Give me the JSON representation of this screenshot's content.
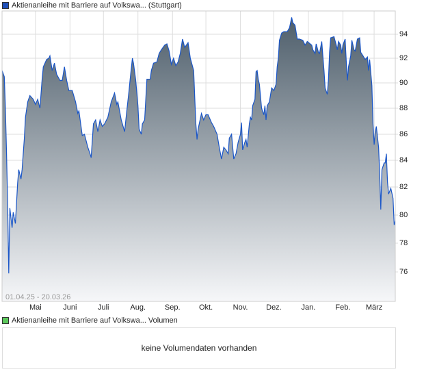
{
  "legend_main": {
    "label": "Aktienanleihe mit Barriere auf Volkswa... (Stuttgart)",
    "color": "#1f4fb8"
  },
  "legend_volume": {
    "label": "Aktienanleihe mit Barriere auf Volkswa... Volumen",
    "color": "#5cc85c"
  },
  "volume_message": "keine Volumendaten vorhanden",
  "chart_data": {
    "type": "area",
    "date_range": "01.04.25 - 20.03.26",
    "x_unit": "days since 01.04.25",
    "xlim": [
      0,
      353
    ],
    "ylim": [
      74,
      95.8
    ],
    "y_ticks": [
      94,
      92,
      90,
      88,
      86,
      84,
      82,
      80,
      78,
      76
    ],
    "x_ticks": [
      {
        "label": "Mai",
        "day": 30
      },
      {
        "label": "Juni",
        "day": 61
      },
      {
        "label": "Juli",
        "day": 91
      },
      {
        "label": "Aug.",
        "day": 122
      },
      {
        "label": "Sep.",
        "day": 153
      },
      {
        "label": "Okt.",
        "day": 183
      },
      {
        "label": "Nov.",
        "day": 214
      },
      {
        "label": "Dez.",
        "day": 244
      },
      {
        "label": "Jan.",
        "day": 275
      },
      {
        "label": "Feb.",
        "day": 306
      },
      {
        "label": "März",
        "day": 334
      }
    ],
    "grid": true,
    "line_color": "#1a56c8",
    "fill_top": "#4e5e6b",
    "fill_bottom": "#f6f7f9",
    "points": [
      [
        0,
        91
      ],
      [
        2,
        90.5
      ],
      [
        3,
        88
      ],
      [
        4,
        84.7
      ],
      [
        5,
        81
      ],
      [
        6,
        75.9
      ],
      [
        7,
        80.5
      ],
      [
        9,
        79.1
      ],
      [
        10,
        80.2
      ],
      [
        12,
        79.4
      ],
      [
        14,
        82.3
      ],
      [
        15,
        83.3
      ],
      [
        17,
        82.6
      ],
      [
        18,
        83.3
      ],
      [
        20,
        85.7
      ],
      [
        21,
        87.3
      ],
      [
        23,
        88.5
      ],
      [
        25,
        89
      ],
      [
        28,
        88.7
      ],
      [
        30,
        88.3
      ],
      [
        32,
        88.7
      ],
      [
        34,
        88
      ],
      [
        36,
        90.3
      ],
      [
        37,
        91.3
      ],
      [
        40,
        91.9
      ],
      [
        42,
        92
      ],
      [
        43,
        92.2
      ],
      [
        45,
        91
      ],
      [
        47,
        91.6
      ],
      [
        49,
        90.7
      ],
      [
        52,
        90.2
      ],
      [
        54,
        90.2
      ],
      [
        56,
        91.3
      ],
      [
        58,
        90.2
      ],
      [
        60,
        89.4
      ],
      [
        63,
        89.4
      ],
      [
        66,
        88.5
      ],
      [
        68,
        87.6
      ],
      [
        69,
        87.8
      ],
      [
        72,
        85.9
      ],
      [
        74,
        86
      ],
      [
        77,
        85
      ],
      [
        79,
        84.5
      ],
      [
        80,
        84.2
      ],
      [
        82,
        86.8
      ],
      [
        84,
        87.1
      ],
      [
        86,
        86.2
      ],
      [
        88,
        87.1
      ],
      [
        90,
        86.6
      ],
      [
        92,
        86.8
      ],
      [
        95,
        87.3
      ],
      [
        98,
        88.5
      ],
      [
        101,
        89.2
      ],
      [
        103,
        88.3
      ],
      [
        104,
        88.5
      ],
      [
        107,
        87.1
      ],
      [
        110,
        86.2
      ],
      [
        112,
        87.8
      ],
      [
        114,
        89.4
      ],
      [
        115,
        90.3
      ],
      [
        117,
        92
      ],
      [
        118,
        91.6
      ],
      [
        120,
        90.2
      ],
      [
        122,
        88.2
      ],
      [
        123,
        86.4
      ],
      [
        125,
        86
      ],
      [
        126,
        86.8
      ],
      [
        128,
        87.1
      ],
      [
        130,
        90.3
      ],
      [
        133,
        90.3
      ],
      [
        134,
        91
      ],
      [
        136,
        91.6
      ],
      [
        139,
        91.7
      ],
      [
        141,
        92.4
      ],
      [
        143,
        92.7
      ],
      [
        146,
        93.1
      ],
      [
        148,
        93.2
      ],
      [
        150,
        92.6
      ],
      [
        152,
        91.5
      ],
      [
        154,
        92
      ],
      [
        156,
        91.4
      ],
      [
        158,
        91.7
      ],
      [
        160,
        92.4
      ],
      [
        162,
        93.6
      ],
      [
        164,
        92.9
      ],
      [
        167,
        93.3
      ],
      [
        169,
        92
      ],
      [
        172,
        91
      ],
      [
        173,
        88.8
      ],
      [
        174,
        86.8
      ],
      [
        175,
        85.6
      ],
      [
        176,
        86.4
      ],
      [
        179,
        87.6
      ],
      [
        181,
        87.1
      ],
      [
        183,
        87.5
      ],
      [
        185,
        87.5
      ],
      [
        188,
        86.9
      ],
      [
        190,
        86.6
      ],
      [
        193,
        86
      ],
      [
        195,
        85
      ],
      [
        197,
        84.1
      ],
      [
        199,
        85
      ],
      [
        201,
        84.8
      ],
      [
        203,
        84.5
      ],
      [
        204,
        85.7
      ],
      [
        206,
        86
      ],
      [
        208,
        84.1
      ],
      [
        210,
        84.5
      ],
      [
        212,
        85.4
      ],
      [
        214,
        86
      ],
      [
        215,
        86.9
      ],
      [
        216,
        84.8
      ],
      [
        218,
        85.4
      ],
      [
        219,
        85.6
      ],
      [
        220,
        85
      ],
      [
        222,
        86.8
      ],
      [
        223,
        87.3
      ],
      [
        224,
        87.1
      ],
      [
        225,
        88.2
      ],
      [
        227,
        88.7
      ],
      [
        228,
        90.9
      ],
      [
        229,
        91
      ],
      [
        230,
        90.3
      ],
      [
        231,
        89.9
      ],
      [
        233,
        88
      ],
      [
        235,
        87.5
      ],
      [
        236,
        88.2
      ],
      [
        237,
        87.1
      ],
      [
        238,
        88.2
      ],
      [
        240,
        88.5
      ],
      [
        242,
        89.6
      ],
      [
        244,
        89.4
      ],
      [
        246,
        89.9
      ],
      [
        247,
        91.3
      ],
      [
        248,
        92
      ],
      [
        249,
        93.5
      ],
      [
        251,
        94.1
      ],
      [
        253,
        94.2
      ],
      [
        256,
        94.2
      ],
      [
        258,
        94.5
      ],
      [
        260,
        95.3
      ],
      [
        261,
        94.9
      ],
      [
        263,
        94.7
      ],
      [
        265,
        93.6
      ],
      [
        267,
        93.6
      ],
      [
        270,
        93.5
      ],
      [
        272,
        93.1
      ],
      [
        274,
        93.4
      ],
      [
        278,
        93.1
      ],
      [
        279,
        92.7
      ],
      [
        281,
        92.4
      ],
      [
        282,
        93.2
      ],
      [
        284,
        92.5
      ],
      [
        285,
        92.4
      ],
      [
        287,
        93.4
      ],
      [
        288,
        92.2
      ],
      [
        289,
        91
      ],
      [
        290,
        89.6
      ],
      [
        292,
        89.1
      ],
      [
        293,
        90.3
      ],
      [
        294,
        92.5
      ],
      [
        295,
        93.7
      ],
      [
        298,
        93.8
      ],
      [
        300,
        93.1
      ],
      [
        301,
        92.7
      ],
      [
        302,
        93.4
      ],
      [
        304,
        93.1
      ],
      [
        305,
        92.4
      ],
      [
        306,
        93.1
      ],
      [
        308,
        93.6
      ],
      [
        309,
        91.8
      ],
      [
        310,
        90.2
      ],
      [
        311,
        91.3
      ],
      [
        313,
        92.2
      ],
      [
        314,
        93.5
      ],
      [
        316,
        92.7
      ],
      [
        317,
        92.6
      ],
      [
        319,
        93.6
      ],
      [
        321,
        93.7
      ],
      [
        322,
        92.5
      ],
      [
        324,
        92.2
      ],
      [
        326,
        91.9
      ],
      [
        328,
        92.1
      ],
      [
        329,
        91
      ],
      [
        330,
        91.9
      ],
      [
        332,
        89.8
      ],
      [
        333,
        86.8
      ],
      [
        334,
        85.2
      ],
      [
        335,
        86.2
      ],
      [
        336,
        86.6
      ],
      [
        338,
        85
      ],
      [
        339,
        83
      ],
      [
        340,
        80.4
      ],
      [
        341,
        83.3
      ],
      [
        343,
        83.8
      ],
      [
        344,
        83.8
      ],
      [
        345,
        84.5
      ],
      [
        346,
        82.4
      ],
      [
        347,
        81.5
      ],
      [
        349,
        81.9
      ],
      [
        351,
        81.2
      ],
      [
        352,
        79.3
      ],
      [
        353,
        79.6
      ]
    ]
  }
}
